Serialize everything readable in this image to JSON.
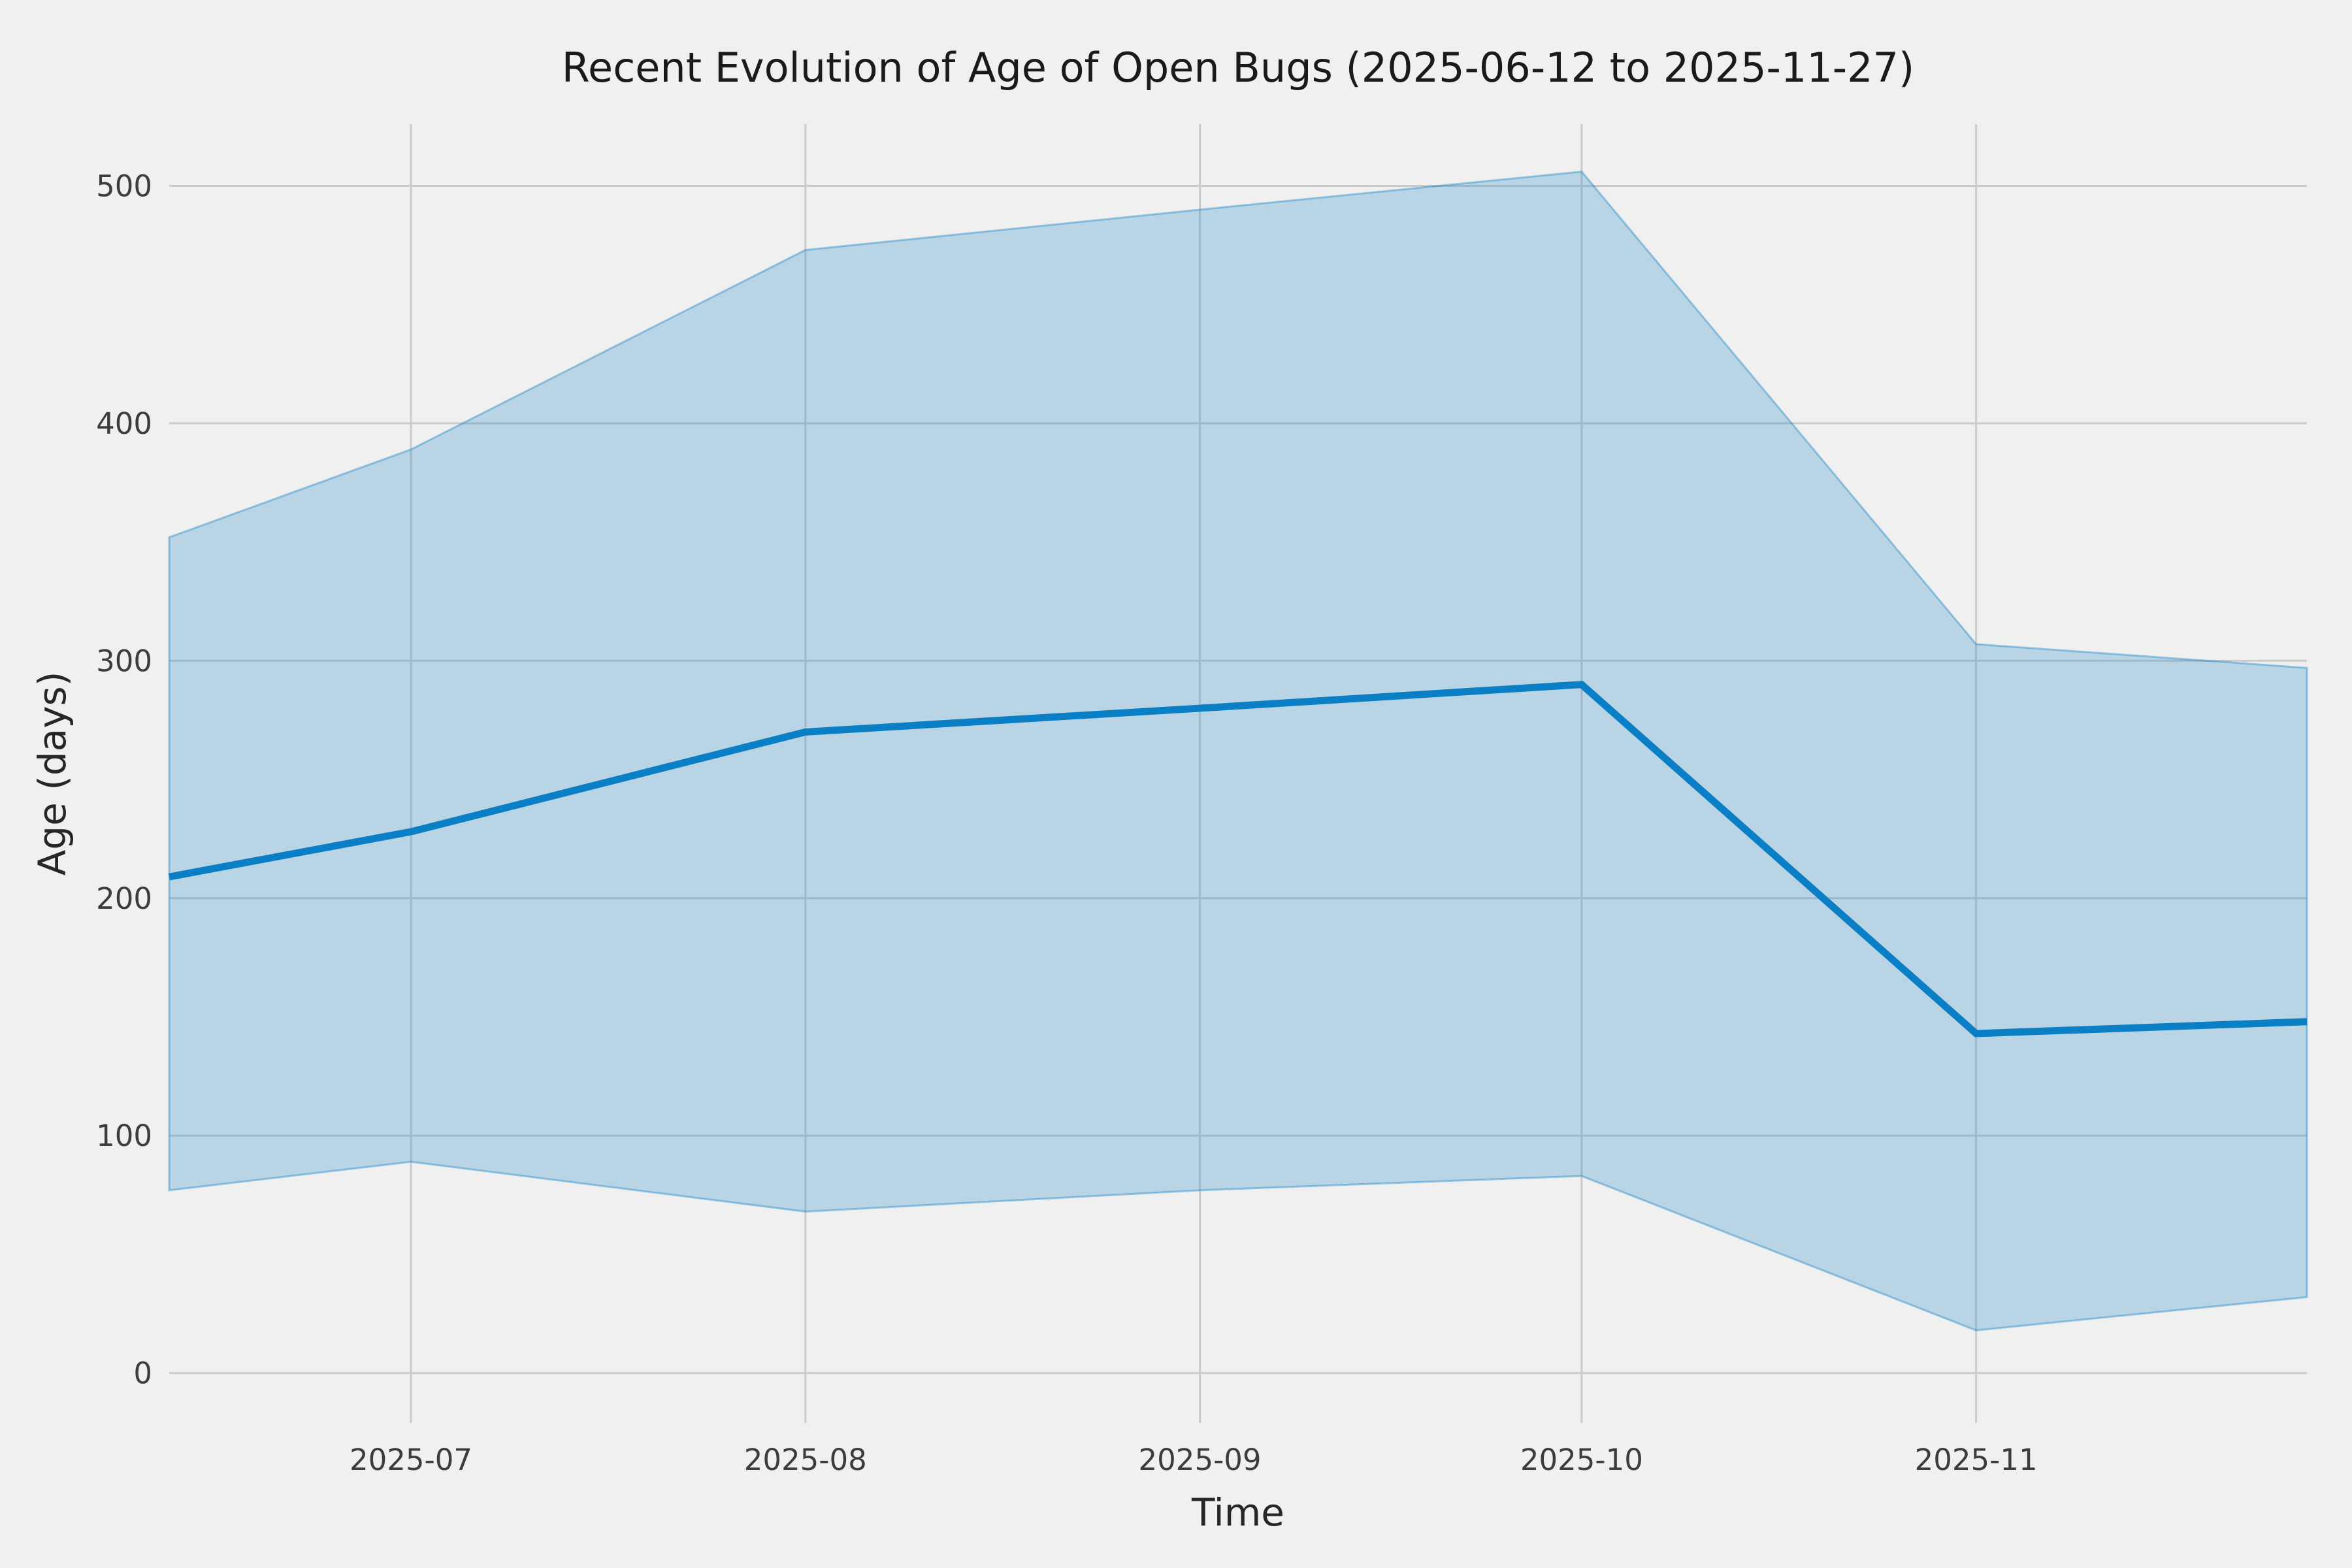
{
  "chart_data": {
    "type": "line",
    "title": "Recent Evolution of Age of Open Bugs (2025-06-12 to 2025-11-27)",
    "xlabel": "Time",
    "ylabel": "Age (days)",
    "x_dates": [
      "2025-06-12",
      "2025-07-01",
      "2025-08-01",
      "2025-09-01",
      "2025-10-01",
      "2025-11-01",
      "2025-11-27"
    ],
    "series": [
      {
        "name": "mean-age-line",
        "values": [
          209,
          228,
          270,
          280,
          290,
          143,
          148
        ]
      },
      {
        "name": "band-upper",
        "values": [
          352,
          389,
          473,
          490,
          506,
          307,
          297
        ]
      },
      {
        "name": "band-lower",
        "values": [
          77,
          89,
          68,
          77,
          83,
          18,
          32
        ]
      }
    ],
    "x_ticks": [
      "2025-07",
      "2025-08",
      "2025-09",
      "2025-10",
      "2025-11"
    ],
    "y_ticks": [
      0,
      100,
      200,
      300,
      400,
      500
    ],
    "ylim": [
      -21,
      526
    ],
    "grid": true,
    "legend": "none",
    "colors": {
      "line": "#0a7fc5",
      "band_fill": "rgba(10,127,197,0.24)",
      "band_edge": "rgba(10,127,197,0.38)",
      "background": "#f0f0f0",
      "gridline": "#cbcbcb",
      "title_text": "#1a1a1a",
      "tick_text": "#3c3c3c"
    }
  }
}
